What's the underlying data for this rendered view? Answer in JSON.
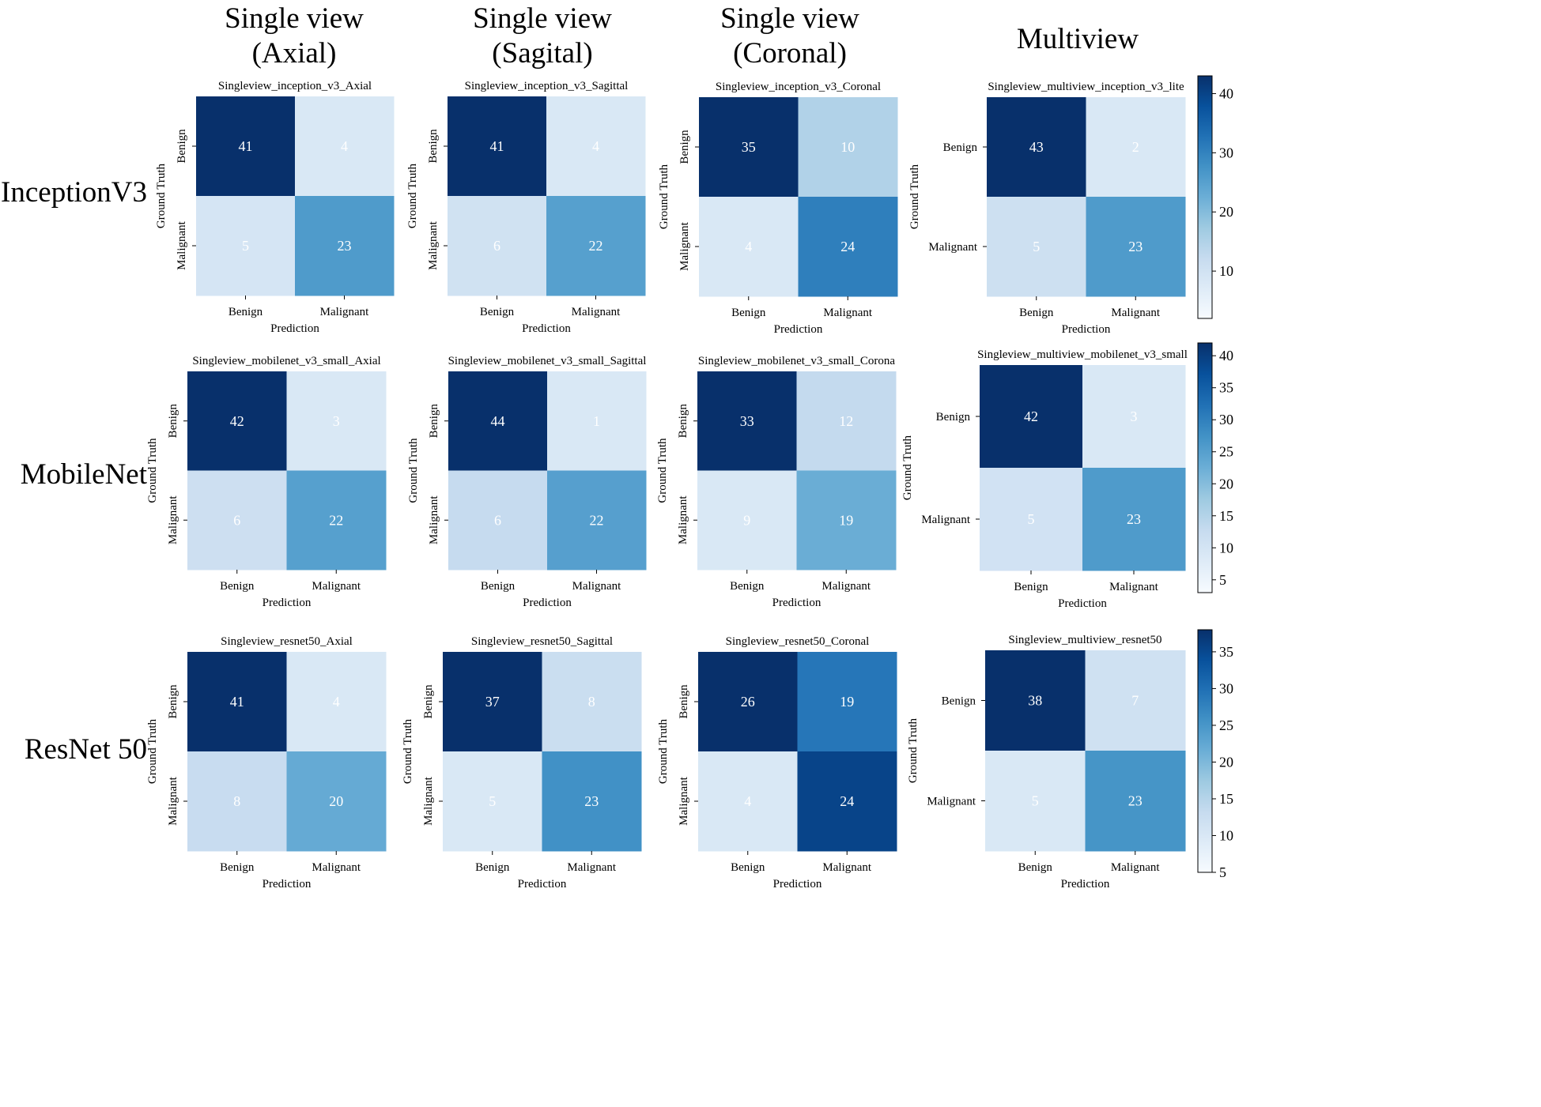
{
  "figure": {
    "column_headers": [
      "Single view\n(Axial)",
      "Single view\n(Sagital)",
      "Single view\n(Coronal)",
      "Multiview"
    ],
    "row_headers": [
      "InceptionV3",
      "MobileNet",
      "ResNet 50"
    ],
    "colormap": {
      "light": "#f7fbff",
      "dark": "#08306b"
    }
  },
  "chart_data": [
    {
      "type": "heatmap",
      "title": "Singleview_inception_v3_Axial",
      "xlabel": "Prediction",
      "ylabel": "Ground Truth",
      "categories": [
        "Benign",
        "Malignant"
      ],
      "values": [
        [
          41,
          4
        ],
        [
          5,
          23
        ]
      ]
    },
    {
      "type": "heatmap",
      "title": "Singleview_inception_v3_Sagittal",
      "xlabel": "Prediction",
      "ylabel": "Ground Truth",
      "categories": [
        "Benign",
        "Malignant"
      ],
      "values": [
        [
          41,
          4
        ],
        [
          6,
          22
        ]
      ]
    },
    {
      "type": "heatmap",
      "title": "Singleview_inception_v3_Coronal",
      "xlabel": "Prediction",
      "ylabel": "Ground Truth",
      "categories": [
        "Benign",
        "Malignant"
      ],
      "values": [
        [
          35,
          10
        ],
        [
          4,
          24
        ]
      ]
    },
    {
      "type": "heatmap",
      "title": "Singleview_multiview_inception_v3_lite",
      "xlabel": "Prediction",
      "ylabel": "Ground Truth",
      "categories": [
        "Benign",
        "Malignant"
      ],
      "values": [
        [
          43,
          2
        ],
        [
          5,
          23
        ]
      ],
      "colorbar": {
        "ticks": [
          10,
          20,
          30,
          40
        ],
        "range": [
          2,
          43
        ]
      }
    },
    {
      "type": "heatmap",
      "title": "Singleview_mobilenet_v3_small_Axial",
      "xlabel": "Prediction",
      "ylabel": "Ground Truth",
      "categories": [
        "Benign",
        "Malignant"
      ],
      "values": [
        [
          42,
          3
        ],
        [
          6,
          22
        ]
      ]
    },
    {
      "type": "heatmap",
      "title": "Singleview_mobilenet_v3_small_Sagittal",
      "xlabel": "Prediction",
      "ylabel": "Ground Truth",
      "categories": [
        "Benign",
        "Malignant"
      ],
      "values": [
        [
          44,
          1
        ],
        [
          6,
          22
        ]
      ]
    },
    {
      "type": "heatmap",
      "title": "Singleview_mobilenet_v3_small_Corona",
      "xlabel": "Prediction",
      "ylabel": "Ground Truth",
      "categories": [
        "Benign",
        "Malignant"
      ],
      "values": [
        [
          33,
          12
        ],
        [
          9,
          19
        ]
      ]
    },
    {
      "type": "heatmap",
      "title": "Singleview_multiview_mobilenet_v3_small",
      "xlabel": "Prediction",
      "ylabel": "Ground Truth",
      "categories": [
        "Benign",
        "Malignant"
      ],
      "values": [
        [
          42,
          3
        ],
        [
          5,
          23
        ]
      ],
      "colorbar": {
        "ticks": [
          5,
          10,
          15,
          20,
          25,
          30,
          35,
          40
        ],
        "range": [
          3,
          42
        ]
      }
    },
    {
      "type": "heatmap",
      "title": "Singleview_resnet50_Axial",
      "xlabel": "Prediction",
      "ylabel": "Ground Truth",
      "categories": [
        "Benign",
        "Malignant"
      ],
      "values": [
        [
          41,
          4
        ],
        [
          8,
          20
        ]
      ]
    },
    {
      "type": "heatmap",
      "title": "Singleview_resnet50_Sagittal",
      "xlabel": "Prediction",
      "ylabel": "Ground Truth",
      "categories": [
        "Benign",
        "Malignant"
      ],
      "values": [
        [
          37,
          8
        ],
        [
          5,
          23
        ]
      ]
    },
    {
      "type": "heatmap",
      "title": "Singleview_resnet50_Coronal",
      "xlabel": "Prediction",
      "ylabel": "Ground Truth",
      "categories": [
        "Benign",
        "Malignant"
      ],
      "values": [
        [
          26,
          19
        ],
        [
          4,
          24
        ]
      ]
    },
    {
      "type": "heatmap",
      "title": "Singleview_multiview_resnet50",
      "xlabel": "Prediction",
      "ylabel": "Ground Truth",
      "categories": [
        "Benign",
        "Malignant"
      ],
      "values": [
        [
          38,
          7
        ],
        [
          5,
          23
        ]
      ],
      "colorbar": {
        "ticks": [
          5,
          10,
          15,
          20,
          25,
          30,
          35
        ],
        "range": [
          5,
          38
        ]
      }
    }
  ]
}
